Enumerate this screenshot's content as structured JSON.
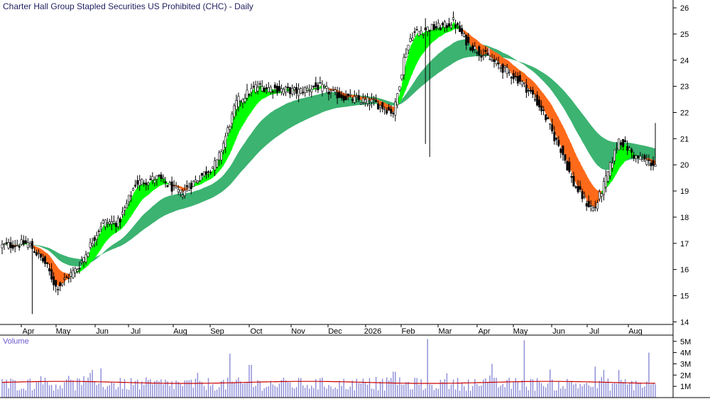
{
  "chart_data": {
    "type": "candlestick",
    "title": "Charter Hall Group Stapled Securities US Prohibited (CHC) - Daily",
    "price_axis": {
      "ylim": [
        13.9,
        26.3
      ],
      "ticks": [
        14,
        15,
        16,
        17,
        18,
        19,
        20,
        21,
        22,
        23,
        24,
        25,
        26
      ]
    },
    "months": [
      "Apr",
      "May",
      "Jun",
      "Jul",
      "Aug",
      "Sep",
      "Oct",
      "Nov",
      "Dec",
      "2026",
      "Feb",
      "Mar",
      "Apr",
      "May",
      "Jun",
      "Jul",
      "Aug"
    ],
    "price_anchors": [
      [
        0,
        16.9
      ],
      [
        1,
        17.0
      ],
      [
        1.5,
        16.2
      ],
      [
        1.8,
        15.3
      ],
      [
        2.4,
        16.1
      ],
      [
        3.0,
        17.8
      ],
      [
        3.5,
        17.8
      ],
      [
        4.0,
        19.3
      ],
      [
        4.5,
        19.5
      ],
      [
        5.0,
        18.9
      ],
      [
        5.5,
        19.5
      ],
      [
        6.0,
        20.1
      ],
      [
        6.5,
        22.4
      ],
      [
        7.0,
        23.0
      ],
      [
        7.5,
        22.9
      ],
      [
        8.0,
        22.8
      ],
      [
        8.5,
        23.0
      ],
      [
        9.0,
        22.7
      ],
      [
        9.5,
        22.5
      ],
      [
        10.0,
        22.4
      ],
      [
        10.3,
        22.2
      ],
      [
        10.6,
        22.0
      ],
      [
        10.9,
        24.2
      ],
      [
        11.1,
        25.0
      ],
      [
        11.5,
        25.2
      ],
      [
        12.0,
        25.3
      ],
      [
        12.2,
        25.5
      ],
      [
        12.6,
        24.6
      ],
      [
        13.0,
        24.2
      ],
      [
        13.5,
        23.7
      ],
      [
        14.0,
        23.2
      ],
      [
        14.3,
        22.7
      ],
      [
        14.6,
        22.0
      ],
      [
        14.9,
        21.0
      ],
      [
        15.1,
        20.5
      ],
      [
        15.4,
        19.3
      ],
      [
        15.8,
        18.5
      ],
      [
        16.0,
        18.3
      ],
      [
        16.3,
        19.5
      ],
      [
        16.6,
        21.0
      ],
      [
        17.0,
        20.3
      ],
      [
        17.5,
        20.0
      ],
      [
        18.0,
        19.6
      ],
      [
        18.5,
        20.2
      ],
      [
        18.8,
        20.8
      ],
      [
        19.2,
        23.2
      ],
      [
        19.5,
        23.4
      ],
      [
        20.0,
        22.5
      ],
      [
        20.5,
        22.2
      ],
      [
        21.0,
        22.0
      ],
      [
        21.3,
        22.5
      ],
      [
        21.5,
        23.5
      ],
      [
        22.0,
        23.5
      ],
      [
        22.3,
        22.5
      ],
      [
        22.5,
        21.6
      ],
      [
        22.6,
        20.3
      ]
    ],
    "volume": {
      "label": "Volume",
      "ticks": [
        "1M",
        "2M",
        "3M",
        "4M",
        "5M"
      ],
      "tick_values": [
        1000000,
        2000000,
        3000000,
        4000000,
        5000000
      ],
      "max": 5300000,
      "average": 1350000,
      "spikes": [
        [
          0.06,
          1.9
        ],
        [
          0.15,
          2.6
        ],
        [
          0.3,
          2.2
        ],
        [
          0.38,
          2.9
        ],
        [
          0.35,
          3.9
        ],
        [
          0.6,
          2.3
        ],
        [
          0.8,
          5.1
        ],
        [
          0.65,
          5.2
        ],
        [
          0.75,
          3.0
        ],
        [
          0.84,
          2.5
        ],
        [
          0.99,
          4.0
        ]
      ]
    },
    "colors": {
      "candle": "#000000",
      "long_band": "#3cb371",
      "short_band_up": "#00ff00",
      "short_band_down": "#ff6a1a",
      "short_band_pink": "#ffb3b3",
      "volume_bar": "#8b8bd8",
      "volume_avg": "#cc0000",
      "title": "#1f1f5f",
      "volume_label": "#6a5acd"
    }
  }
}
